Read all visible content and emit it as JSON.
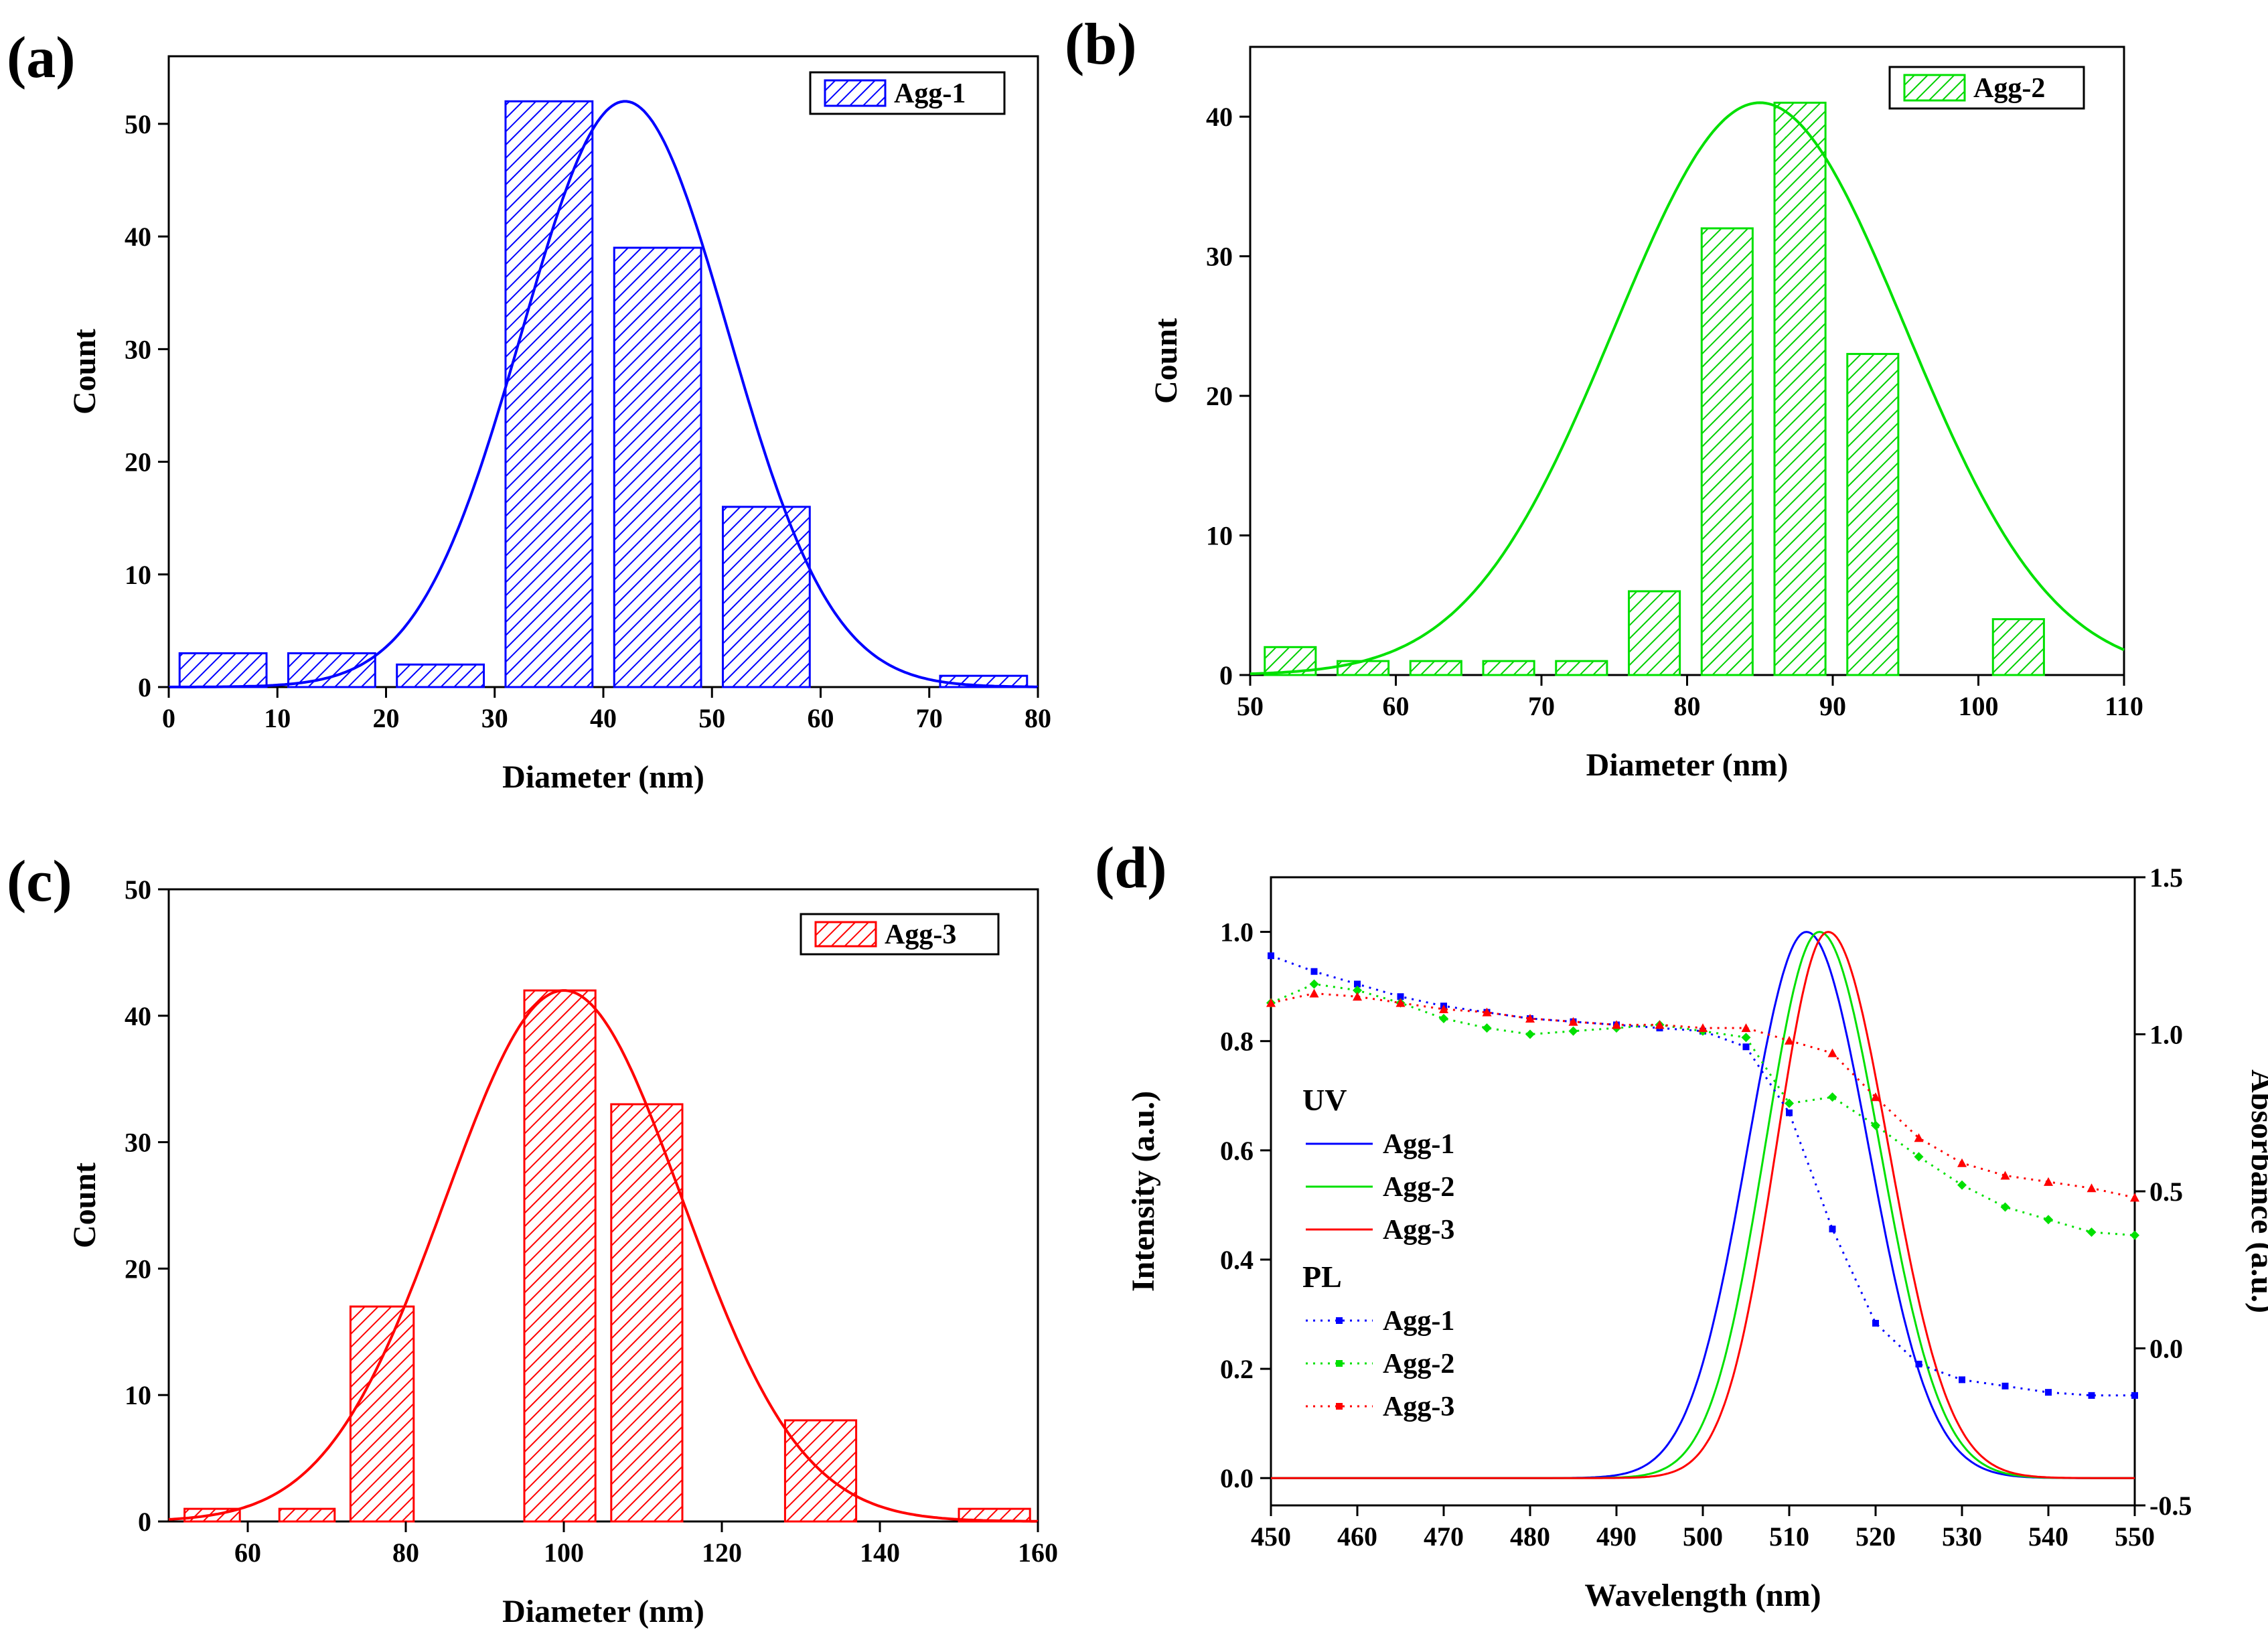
{
  "chart_data": [
    {
      "type": "bar",
      "panel_label": "(a)",
      "xlabel": "Diameter (nm)",
      "ylabel": "Count",
      "xlim": [
        0,
        80
      ],
      "ylim": [
        0,
        56
      ],
      "xticks": [
        "0",
        "10",
        "20",
        "30",
        "40",
        "50",
        "60",
        "70",
        "80"
      ],
      "yticks": [
        "0",
        "10",
        "20",
        "30",
        "40",
        "50"
      ],
      "color": "#0000ff",
      "legend": [
        "Agg-1"
      ],
      "bins": [
        {
          "x0": 1,
          "x1": 9,
          "value": 3
        },
        {
          "x0": 11,
          "x1": 19,
          "value": 3
        },
        {
          "x0": 21,
          "x1": 29,
          "value": 2
        },
        {
          "x0": 31,
          "x1": 39,
          "value": 52
        },
        {
          "x0": 41,
          "x1": 49,
          "value": 39
        },
        {
          "x0": 51,
          "x1": 59,
          "value": 16
        },
        {
          "x0": 71,
          "x1": 79,
          "value": 1
        }
      ],
      "fit": {
        "center": 42,
        "amplitude": 52,
        "sigma": 9.5
      }
    },
    {
      "type": "bar",
      "panel_label": "(b)",
      "xlabel": "Diameter (nm)",
      "ylabel": "Count",
      "xlim": [
        50,
        110
      ],
      "ylim": [
        0,
        45
      ],
      "xticks": [
        "50",
        "60",
        "70",
        "80",
        "90",
        "100",
        "110"
      ],
      "yticks": [
        "0",
        "10",
        "20",
        "30",
        "40"
      ],
      "color": "#00e000",
      "legend": [
        "Agg-2"
      ],
      "bins": [
        {
          "x0": 51,
          "x1": 54.5,
          "value": 2
        },
        {
          "x0": 56,
          "x1": 59.5,
          "value": 1
        },
        {
          "x0": 61,
          "x1": 64.5,
          "value": 1
        },
        {
          "x0": 66,
          "x1": 69.5,
          "value": 1
        },
        {
          "x0": 71,
          "x1": 74.5,
          "value": 1
        },
        {
          "x0": 76,
          "x1": 79.5,
          "value": 6
        },
        {
          "x0": 81,
          "x1": 84.5,
          "value": 32
        },
        {
          "x0": 86,
          "x1": 89.5,
          "value": 41
        },
        {
          "x0": 91,
          "x1": 94.5,
          "value": 23
        },
        {
          "x0": 101,
          "x1": 104.5,
          "value": 4
        }
      ],
      "fit": {
        "center": 85,
        "amplitude": 41,
        "sigma": 10
      }
    },
    {
      "type": "bar",
      "panel_label": "(c)",
      "xlabel": "Diameter (nm)",
      "ylabel": "Count",
      "xlim": [
        50,
        160
      ],
      "ylim": [
        0,
        50
      ],
      "xticks": [
        "60",
        "80",
        "100",
        "120",
        "140",
        "160"
      ],
      "yticks": [
        "0",
        "10",
        "20",
        "30",
        "40",
        "50"
      ],
      "color": "#ff0000",
      "legend": [
        "Agg-3"
      ],
      "bins": [
        {
          "x0": 52,
          "x1": 59,
          "value": 1
        },
        {
          "x0": 64,
          "x1": 71,
          "value": 1
        },
        {
          "x0": 73,
          "x1": 81,
          "value": 17
        },
        {
          "x0": 95,
          "x1": 104,
          "value": 42
        },
        {
          "x0": 106,
          "x1": 115,
          "value": 33
        },
        {
          "x0": 128,
          "x1": 137,
          "value": 8
        },
        {
          "x0": 150,
          "x1": 159,
          "value": 1
        }
      ],
      "fit": {
        "center": 100,
        "amplitude": 42,
        "sigma": 15
      }
    },
    {
      "type": "line",
      "panel_label": "(d)",
      "xlabel": "Wavelength (nm)",
      "ylabel": "Intensity (a.u.)",
      "y2label": "Absorbance (a.u.)",
      "xlim": [
        450,
        550
      ],
      "ylim": [
        -0.05,
        1.1
      ],
      "y2lim": [
        -0.5,
        1.5
      ],
      "xticks": [
        "450",
        "460",
        "470",
        "480",
        "490",
        "500",
        "510",
        "520",
        "530",
        "540",
        "550"
      ],
      "yticks": [
        "0.0",
        "0.2",
        "0.4",
        "0.6",
        "0.8",
        "1.0"
      ],
      "y2ticks": [
        "-0.5",
        "0.0",
        "0.5",
        "1.0",
        "1.5"
      ],
      "legend_groups": [
        {
          "title": "UV",
          "entries": [
            "Agg-1",
            "Agg-2",
            "Agg-3"
          ]
        },
        {
          "title": "PL",
          "entries": [
            "Agg-1",
            "Agg-2",
            "Agg-3"
          ]
        }
      ],
      "colors": [
        "#0000ff",
        "#00e000",
        "#ff0000"
      ],
      "emission_series": [
        {
          "name": "Agg-1",
          "center": 512,
          "sigma_left": 6.8,
          "sigma_right": 7.2
        },
        {
          "name": "Agg-2",
          "center": 513.5,
          "sigma_left": 6.3,
          "sigma_right": 7.0
        },
        {
          "name": "Agg-3",
          "center": 514.5,
          "sigma_left": 6.0,
          "sigma_right": 7.0
        }
      ],
      "dotted_series": [
        {
          "name": "Agg-1",
          "x": [
            450,
            455,
            460,
            465,
            470,
            475,
            480,
            485,
            490,
            495,
            500,
            505,
            510,
            515,
            520,
            525,
            530,
            535,
            540,
            545,
            550
          ],
          "y": [
            1.25,
            1.2,
            1.16,
            1.12,
            1.09,
            1.07,
            1.05,
            1.04,
            1.03,
            1.02,
            1.01,
            0.96,
            0.75,
            0.38,
            0.08,
            -0.05,
            -0.1,
            -0.12,
            -0.14,
            -0.15,
            -0.15
          ]
        },
        {
          "name": "Agg-2",
          "x": [
            450,
            455,
            460,
            465,
            470,
            475,
            480,
            485,
            490,
            495,
            500,
            505,
            510,
            515,
            520,
            525,
            530,
            535,
            540,
            545,
            550
          ],
          "y": [
            1.1,
            1.16,
            1.14,
            1.1,
            1.05,
            1.02,
            1.0,
            1.01,
            1.02,
            1.03,
            1.01,
            0.99,
            0.78,
            0.8,
            0.71,
            0.61,
            0.52,
            0.45,
            0.41,
            0.37,
            0.36
          ]
        },
        {
          "name": "Agg-3",
          "x": [
            450,
            455,
            460,
            465,
            470,
            475,
            480,
            485,
            490,
            495,
            500,
            505,
            510,
            515,
            520,
            525,
            530,
            535,
            540,
            545,
            550
          ],
          "y": [
            1.1,
            1.13,
            1.12,
            1.1,
            1.08,
            1.07,
            1.05,
            1.04,
            1.03,
            1.03,
            1.02,
            1.02,
            0.98,
            0.94,
            0.8,
            0.67,
            0.59,
            0.55,
            0.53,
            0.51,
            0.48
          ]
        }
      ]
    }
  ]
}
